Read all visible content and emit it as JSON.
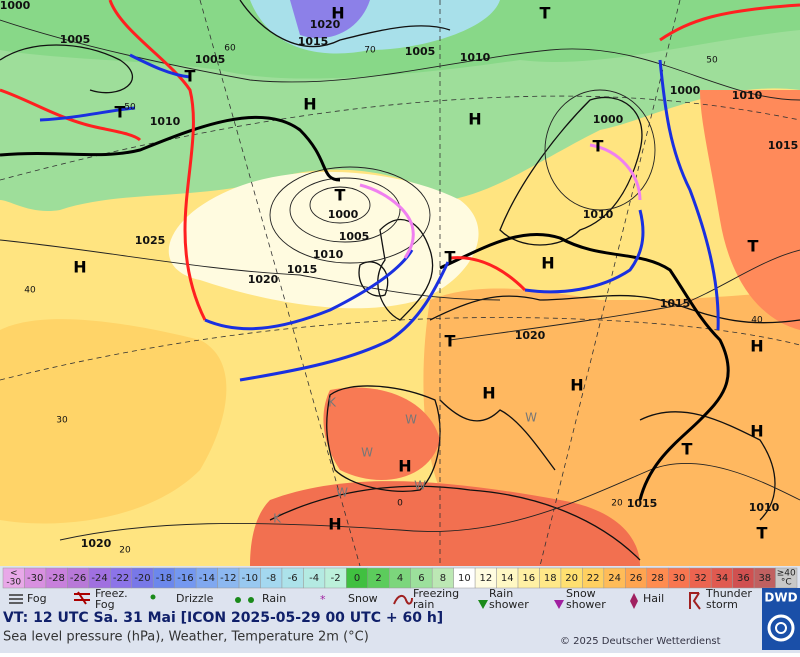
{
  "map": {
    "pressure_labels": [
      "1000",
      "1020",
      "1005",
      "1015",
      "1005",
      "1005",
      "1010",
      "1000",
      "1010",
      "1010",
      "1000",
      "1015",
      "1000",
      "1005",
      "1010",
      "1025",
      "1010",
      "1015",
      "1020",
      "1015",
      "1020",
      "1015",
      "1010",
      "1020"
    ],
    "isotherm_labels": [
      "50",
      "60",
      "70",
      "50",
      "40",
      "30",
      "20",
      "40",
      "20",
      "0"
    ],
    "centers": [
      "H",
      "T",
      "H",
      "H",
      "T",
      "T",
      "T",
      "T",
      "H",
      "T",
      "H",
      "T",
      "T",
      "H",
      "H",
      "H",
      "H",
      "H",
      "T",
      "H",
      "T"
    ],
    "air_mass_labels": [
      "W",
      "W",
      "W",
      "W",
      "W",
      "K",
      "K"
    ]
  },
  "legend": {
    "temperature_scale": [
      {
        "lines": [
          "<",
          "-30"
        ],
        "color": "#e8a8e8"
      },
      {
        "label": "-30",
        "color": "#d890e0"
      },
      {
        "label": "-28",
        "color": "#c880dc"
      },
      {
        "label": "-26",
        "color": "#b878d8"
      },
      {
        "label": "-24",
        "color": "#a070e0"
      },
      {
        "label": "-22",
        "color": "#8c74e8"
      },
      {
        "label": "-20",
        "color": "#7878e8"
      },
      {
        "label": "-18",
        "color": "#6c88ec"
      },
      {
        "label": "-16",
        "color": "#7498f0"
      },
      {
        "label": "-14",
        "color": "#80a8f0"
      },
      {
        "label": "-12",
        "color": "#8cb8f0"
      },
      {
        "label": "-10",
        "color": "#98c8f0"
      },
      {
        "label": "-8",
        "color": "#a4d8f0"
      },
      {
        "label": "-6",
        "color": "#ace2ea"
      },
      {
        "label": "-4",
        "color": "#b4eae2"
      },
      {
        "label": "-2",
        "color": "#bcf0da"
      },
      {
        "label": "0",
        "color": "#40c040"
      },
      {
        "label": "2",
        "color": "#5ccc5c"
      },
      {
        "label": "4",
        "color": "#7cd67c"
      },
      {
        "label": "6",
        "color": "#9ce09c"
      },
      {
        "label": "8",
        "color": "#bce8b4"
      },
      {
        "label": "10",
        "color": "#ffffff"
      },
      {
        "label": "12",
        "color": "#fffce0"
      },
      {
        "label": "14",
        "color": "#fff8c4"
      },
      {
        "label": "16",
        "color": "#fff0a4"
      },
      {
        "label": "18",
        "color": "#ffe888"
      },
      {
        "label": "20",
        "color": "#ffe070"
      },
      {
        "label": "22",
        "color": "#ffd060"
      },
      {
        "label": "24",
        "color": "#ffbc58"
      },
      {
        "label": "26",
        "color": "#ffa450"
      },
      {
        "label": "28",
        "color": "#ff8c50"
      },
      {
        "label": "30",
        "color": "#f87650"
      },
      {
        "label": "32",
        "color": "#ec6450"
      },
      {
        "label": "34",
        "color": "#e05a50"
      },
      {
        "label": "36",
        "color": "#d05050"
      },
      {
        "label": "38",
        "color": "#c06060"
      },
      {
        "lines": [
          "≥40",
          "°C"
        ],
        "color": "#c8c8c8"
      }
    ],
    "weather": [
      {
        "lines": [
          "Fog"
        ]
      },
      {
        "lines": [
          "Freez.",
          "Fog"
        ]
      },
      {
        "lines": [
          "Drizzle"
        ]
      },
      {
        "lines": [
          "Rain"
        ]
      },
      {
        "lines": [
          "Snow"
        ]
      },
      {
        "lines": [
          "Freezing",
          "rain"
        ]
      },
      {
        "lines": [
          "Rain",
          "shower"
        ]
      },
      {
        "lines": [
          "Snow",
          "shower"
        ]
      },
      {
        "lines": [
          "Hail"
        ]
      },
      {
        "lines": [
          "Thunder",
          "storm"
        ]
      }
    ]
  },
  "footer": {
    "valid_time": "VT: 12 UTC Sa.  31 Mai [ICON 2025-05-29  00 UTC + 60 h]",
    "description": "Sea level pressure (hPa), Weather, Temperature 2m (°C)",
    "copyright": "© 2025 Deutscher Wetterdienst",
    "logo": "DWD"
  }
}
